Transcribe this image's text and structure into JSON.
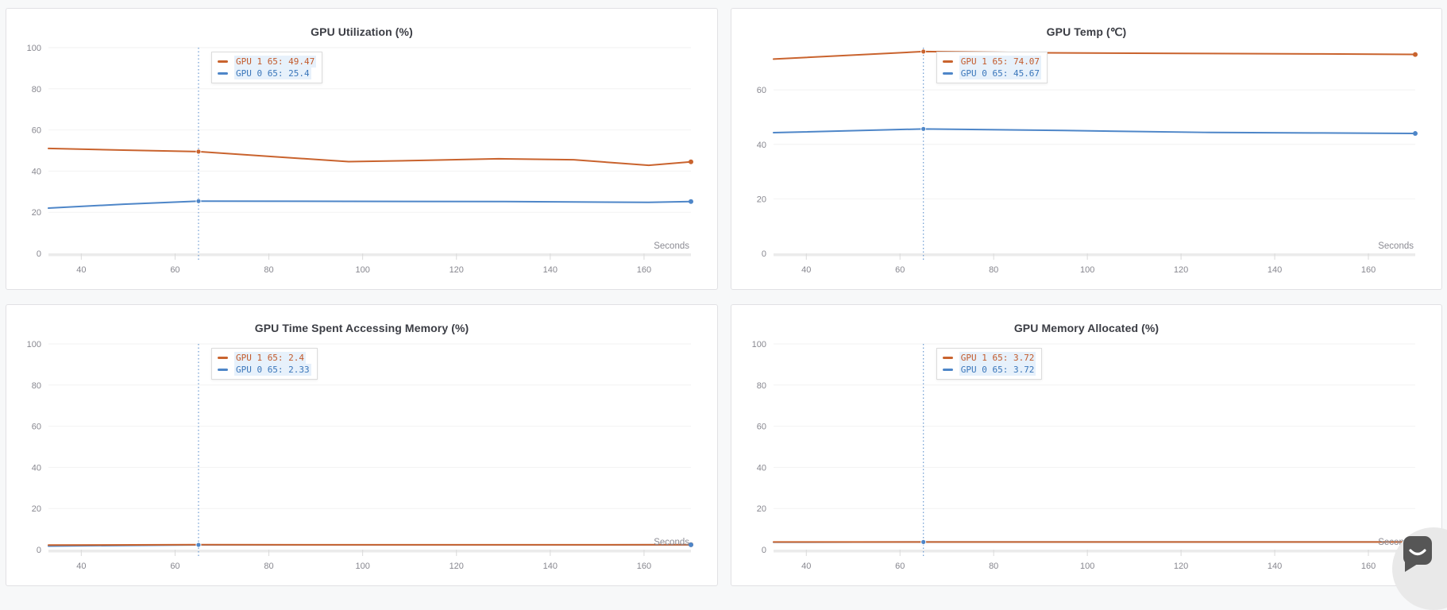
{
  "page": {
    "background": "#f7f8f9",
    "panel_background": "#ffffff",
    "panel_border": "#e1e1e4"
  },
  "colors": {
    "gpu1_line": "#c9632e",
    "gpu0_line": "#4e86c8",
    "grid_line": "#f2f2f2",
    "axis_band": "#ebebeb",
    "tick_mark": "#dadada",
    "tick_label": "#87878f",
    "title_text": "#3b3d44",
    "hover_line": "#4e86c8",
    "tooltip_row_highlight": "#e7f1fb"
  },
  "chat_launcher": {
    "icon": "chat-smile-bubble",
    "bubble_color": "#565656",
    "ring_color": "#e9e9e9"
  },
  "chart_data": [
    {
      "type": "line",
      "title": "GPU Utilization (%)",
      "xlabel": "Seconds",
      "xlim": [
        33,
        170
      ],
      "ylim": [
        0,
        100
      ],
      "x_ticks": [
        40,
        60,
        80,
        100,
        120,
        140,
        160
      ],
      "y_ticks": [
        0,
        20,
        40,
        60,
        80,
        100
      ],
      "grid": "horizontal",
      "legend": "hover-tooltip",
      "hover_x": 65,
      "tooltip": [
        {
          "text": "GPU 1 65: 49.47",
          "color": "#c35a2b"
        },
        {
          "text": "GPU 0 65: 25.4",
          "color": "#3a76ba"
        }
      ],
      "series": [
        {
          "name": "GPU 1",
          "color": "#c9632e",
          "hover_y": 49.47,
          "x": [
            33,
            49,
            65,
            81,
            97,
            113,
            129,
            145,
            161,
            170
          ],
          "y": [
            51.0,
            50.2,
            49.47,
            47.0,
            44.6,
            45.2,
            46.0,
            45.5,
            42.8,
            44.5
          ]
        },
        {
          "name": "GPU 0",
          "color": "#4e86c8",
          "hover_y": 25.4,
          "x": [
            33,
            49,
            65,
            97,
            129,
            161,
            170
          ],
          "y": [
            22.0,
            23.9,
            25.4,
            25.3,
            25.2,
            24.8,
            25.2
          ]
        }
      ]
    },
    {
      "type": "line",
      "title": "GPU Temp (℃)",
      "xlabel": "Seconds",
      "xlim": [
        33,
        170
      ],
      "ylim": [
        0,
        75.5
      ],
      "x_ticks": [
        40,
        60,
        80,
        100,
        120,
        140,
        160
      ],
      "y_ticks": [
        0,
        20,
        40,
        60
      ],
      "grid": "horizontal",
      "legend": "hover-tooltip",
      "hover_x": 65,
      "tooltip": [
        {
          "text": "GPU 1 65: 74.07",
          "color": "#c35a2b"
        },
        {
          "text": "GPU 0 65: 45.67",
          "color": "#3a76ba"
        }
      ],
      "series": [
        {
          "name": "GPU 1",
          "color": "#c9632e",
          "hover_y": 74.07,
          "x": [
            33,
            65,
            91,
            120,
            150,
            170
          ],
          "y": [
            71.3,
            74.07,
            73.6,
            73.4,
            73.2,
            73.0
          ]
        },
        {
          "name": "GPU 0",
          "color": "#4e86c8",
          "hover_y": 45.67,
          "x": [
            33,
            65,
            95,
            125,
            150,
            170
          ],
          "y": [
            44.3,
            45.67,
            45.1,
            44.4,
            44.2,
            44.0
          ]
        }
      ]
    },
    {
      "type": "line",
      "title": "GPU Time Spent Accessing Memory (%)",
      "xlabel": "Seconds",
      "xlim": [
        33,
        170
      ],
      "ylim": [
        0,
        100
      ],
      "x_ticks": [
        40,
        60,
        80,
        100,
        120,
        140,
        160
      ],
      "y_ticks": [
        0,
        20,
        40,
        60,
        80,
        100
      ],
      "grid": "horizontal",
      "legend": "hover-tooltip",
      "hover_x": 65,
      "tooltip": [
        {
          "text": "GPU 1 65: 2.4",
          "color": "#c35a2b"
        },
        {
          "text": "GPU 0 65: 2.33",
          "color": "#3a76ba"
        }
      ],
      "series": [
        {
          "name": "GPU 1",
          "color": "#c9632e",
          "hover_y": 2.4,
          "x": [
            33,
            65,
            100,
            135,
            170
          ],
          "y": [
            2.2,
            2.4,
            2.35,
            2.35,
            2.4
          ]
        },
        {
          "name": "GPU 0",
          "color": "#4e86c8",
          "hover_y": 2.33,
          "x": [
            33,
            65,
            100,
            135,
            170
          ],
          "y": [
            1.75,
            2.33,
            2.3,
            2.3,
            2.35
          ]
        }
      ]
    },
    {
      "type": "line",
      "title": "GPU Memory Allocated (%)",
      "xlabel": "Seconds",
      "xlim": [
        33,
        170
      ],
      "ylim": [
        0,
        100
      ],
      "x_ticks": [
        40,
        60,
        80,
        100,
        120,
        140,
        160
      ],
      "y_ticks": [
        0,
        20,
        40,
        60,
        80,
        100
      ],
      "grid": "horizontal",
      "legend": "hover-tooltip",
      "hover_x": 65,
      "tooltip": [
        {
          "text": "GPU 1 65: 3.72",
          "color": "#c35a2b"
        },
        {
          "text": "GPU 0 65: 3.72",
          "color": "#3a76ba"
        }
      ],
      "series": [
        {
          "name": "GPU 1",
          "color": "#c9632e",
          "hover_y": 3.72,
          "x": [
            33,
            65,
            100,
            135,
            170
          ],
          "y": [
            3.72,
            3.72,
            3.72,
            3.72,
            3.72
          ]
        },
        {
          "name": "GPU 0",
          "color": "#4e86c8",
          "hover_y": 3.72,
          "x": [
            33,
            65,
            100,
            135,
            170
          ],
          "y": [
            3.6,
            3.72,
            3.7,
            3.7,
            3.72
          ]
        }
      ]
    }
  ]
}
